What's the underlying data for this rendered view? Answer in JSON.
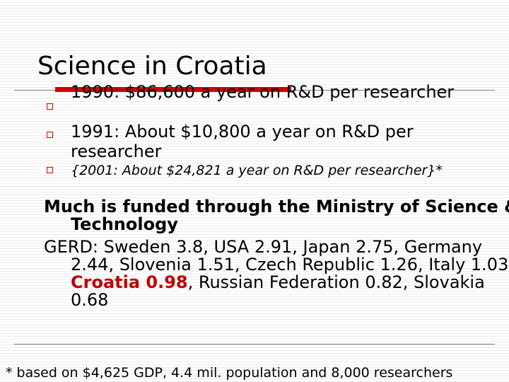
{
  "slide": {
    "title": "Science in Croatia",
    "bullets": [
      {
        "text": "1990: $86,600 a year on R&D per researcher"
      },
      {
        "text": "1991: About $10,800 a year on R&D per researcher"
      },
      {
        "text": "{2001: About $24,821 a year on R&D per researcher}*"
      }
    ],
    "funding": "Much is funded through the Ministry of Science & Technology",
    "gerd_prefix": "GERD: Sweden 3.8, USA 2.91, Japan 2.75, Germany 2.44, Slovenia 1.51, Czech Republic 1.26, Italy 1.03, ",
    "gerd_highlight": "Croatia 0.98",
    "gerd_suffix": ", Russian Federation 0.82, Slovakia 0.68",
    "footnote": "* based on $4,625 GDP, 4.4 mil. population and 8,000 researchers"
  },
  "colors": {
    "accent": "#d20000",
    "highlight": "#c00000"
  }
}
